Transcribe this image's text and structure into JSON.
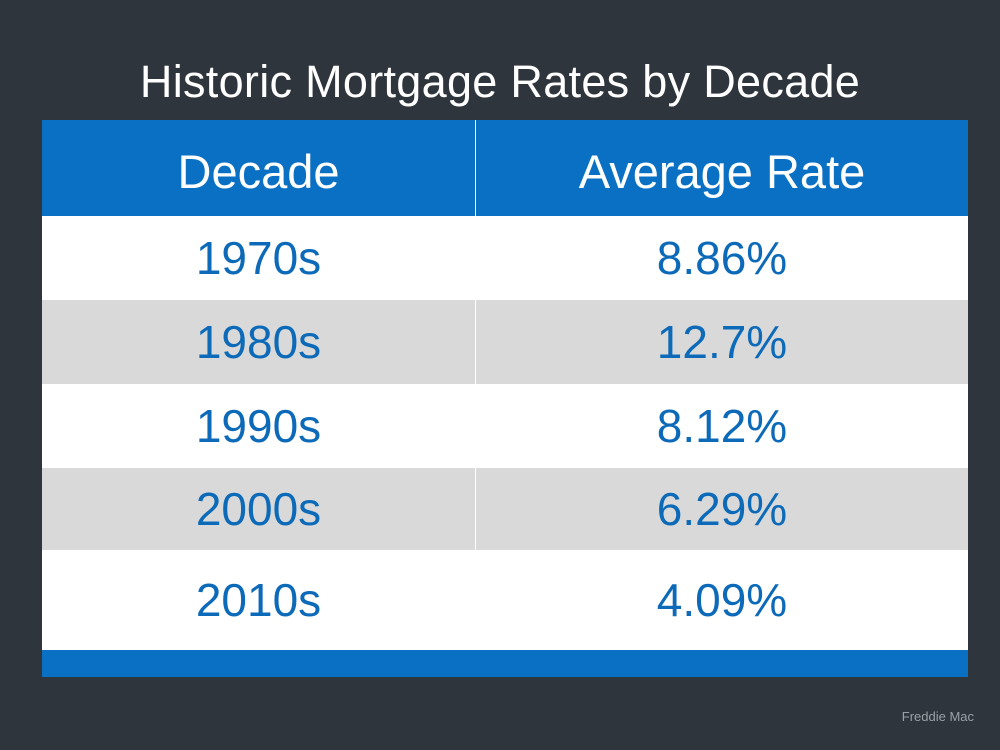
{
  "chart_data": {
    "type": "table",
    "title": "Historic Mortgage Rates by Decade",
    "columns": [
      "Decade",
      "Average Rate"
    ],
    "rows": [
      {
        "decade": "1970s",
        "rate": "8.86%"
      },
      {
        "decade": "1980s",
        "rate": "12.7%"
      },
      {
        "decade": "1990s",
        "rate": "8.12%"
      },
      {
        "decade": "2000s",
        "rate": "6.29%"
      },
      {
        "decade": "2010s",
        "rate": "4.09%"
      }
    ],
    "values": [
      8.86,
      12.7,
      8.12,
      6.29,
      4.09
    ],
    "source": "Freddie Mac"
  },
  "colors": {
    "background": "#2f353c",
    "header": "#0a70c4",
    "text_blue": "#0c6ab8",
    "row_alt": "#d9d9d9"
  }
}
